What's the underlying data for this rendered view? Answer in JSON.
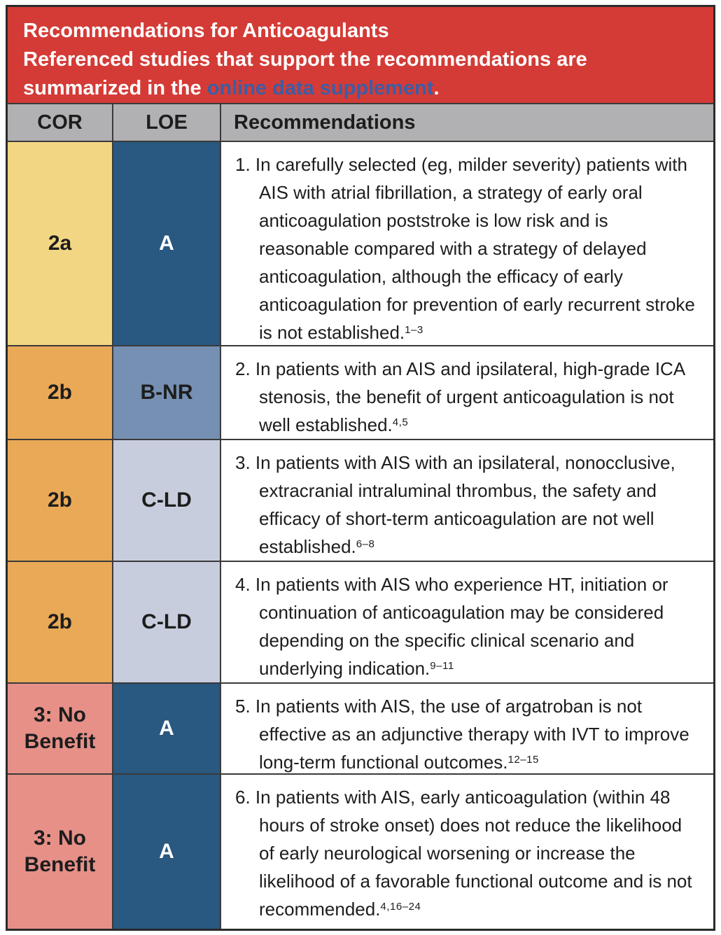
{
  "header": {
    "title": "Recommendations for Anticoagulants",
    "subtitle_before": "Referenced studies that support the recommendations are summarized in the ",
    "link_text": "online data supplement",
    "subtitle_after": "."
  },
  "columns": {
    "cor": "COR",
    "loe": "LOE",
    "rec": "Recommendations"
  },
  "colors": {
    "header_bg": "#d43b36",
    "link_blue": "#3b5ea6",
    "col_header_bg": "#b1b1b3",
    "cor_2a": "#f3d683",
    "cor_2b": "#e9a957",
    "cor_3nb": "#e69088",
    "loe_a": "#295880",
    "loe_bnr": "#7590b3",
    "loe_cld": "#c8cdde"
  },
  "rows": [
    {
      "cor": "2a",
      "loe": "A",
      "number": "1.",
      "text": "In carefully selected (eg, milder severity) patients with AIS with atrial fibrillation, a strategy of early oral anticoagulation poststroke is low risk and is reasonable compared with a strategy of delayed anticoagulation, although the efficacy of early anticoagulation for prevention of early recurrent stroke is not established.",
      "citation": "1–3"
    },
    {
      "cor": "2b",
      "loe": "B-NR",
      "number": "2.",
      "text": "In patients with an AIS and ipsilateral, high-grade ICA stenosis, the benefit of urgent anticoagulation is not well established.",
      "citation": "4,5"
    },
    {
      "cor": "2b",
      "loe": "C-LD",
      "number": "3.",
      "text": "In patients with AIS with an ipsilateral, nonocclusive, extracranial intraluminal thrombus, the safety and efficacy of short-term anticoagulation are not well established.",
      "citation": "6–8"
    },
    {
      "cor": "2b",
      "loe": "C-LD",
      "number": "4.",
      "text": "In patients with AIS who experience HT, initiation or continuation of anticoagulation may be considered depending on the specific clinical scenario and underlying indication.",
      "citation": "9–11"
    },
    {
      "cor": "3: No Benefit",
      "loe": "A",
      "number": "5.",
      "text": "In patients with AIS, the use of argatroban is not effective as an adjunctive therapy with IVT to improve long-term functional outcomes.",
      "citation": "12–15"
    },
    {
      "cor": "3: No Benefit",
      "loe": "A",
      "number": "6.",
      "text": "In patients with AIS, early anticoagulation (within 48 hours of stroke onset) does not reduce the likelihood of early neurological worsening or increase the likelihood of a favorable functional outcome and is not recommended.",
      "citation": "4,16–24"
    }
  ]
}
